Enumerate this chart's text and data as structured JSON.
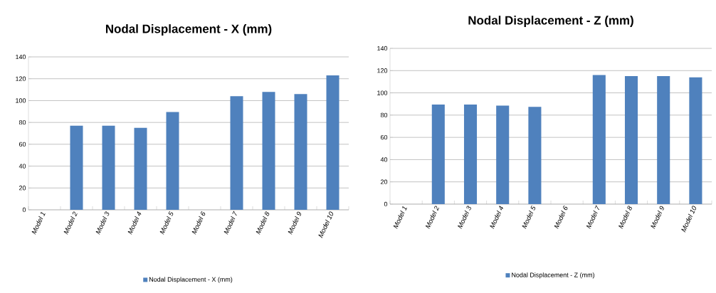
{
  "chart_data": [
    {
      "type": "bar",
      "title": "Nodal Displacement - X (mm)",
      "categories": [
        "Model 1",
        "Model 2",
        "Model 3",
        "Model 4",
        "Model 5",
        "Model 6",
        "Model 7",
        "Model 8",
        "Model 9",
        "Model 10"
      ],
      "series": [
        {
          "name": "Nodal Displacement - X (mm)",
          "color": "#4f81bd",
          "values": [
            null,
            77,
            77,
            75,
            89.5,
            null,
            104,
            108,
            106,
            123
          ]
        }
      ],
      "ylim": [
        0,
        140
      ],
      "yticks": [
        0,
        20,
        40,
        60,
        80,
        100,
        120,
        140
      ],
      "grid": "y",
      "legend": "bottom"
    },
    {
      "type": "bar",
      "title": "Nodal Displacement - Z (mm)",
      "categories": [
        "Model 1",
        "Model 2",
        "Model 3",
        "Model 4",
        "Model 5",
        "Model 6",
        "Model 7",
        "Model 8",
        "Model 9",
        "Model 10"
      ],
      "series": [
        {
          "name": "Nodal Displacement - Z (mm)",
          "color": "#4f81bd",
          "values": [
            null,
            89.5,
            89.5,
            88.5,
            87.5,
            null,
            116,
            115,
            115,
            114
          ]
        }
      ],
      "ylim": [
        0,
        140
      ],
      "yticks": [
        0,
        20,
        40,
        60,
        80,
        100,
        120,
        140
      ],
      "grid": "y",
      "legend": "bottom"
    }
  ]
}
